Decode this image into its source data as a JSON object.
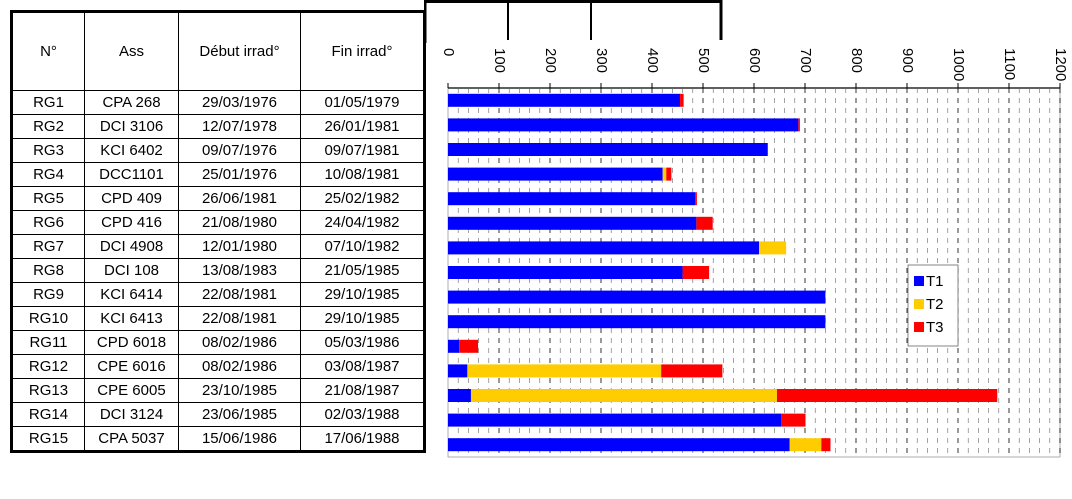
{
  "table": {
    "headers": [
      "N°",
      "Ass",
      "Début irrad°",
      "Fin irrad°"
    ],
    "rows": [
      [
        "RG1",
        "CPA 268",
        "29/03/1976",
        "01/05/1979"
      ],
      [
        "RG2",
        "DCI 3106",
        "12/07/1978",
        "26/01/1981"
      ],
      [
        "RG3",
        "KCI 6402",
        "09/07/1976",
        "09/07/1981"
      ],
      [
        "RG4",
        "DCC1101",
        "25/01/1976",
        "10/08/1981"
      ],
      [
        "RG5",
        "CPD 409",
        "26/06/1981",
        "25/02/1982"
      ],
      [
        "RG6",
        "CPD 416",
        "21/08/1980",
        "24/04/1982"
      ],
      [
        "RG7",
        "DCI 4908",
        "12/01/1980",
        "07/10/1982"
      ],
      [
        "RG8",
        "DCI 108",
        "13/08/1983",
        "21/05/1985"
      ],
      [
        "RG9",
        "KCI 6414",
        "22/08/1981",
        "29/10/1985"
      ],
      [
        "RG10",
        "KCI 6413",
        "22/08/1981",
        "29/10/1985"
      ],
      [
        "RG11",
        "CPD 6018",
        "08/02/1986",
        "05/03/1986"
      ],
      [
        "RG12",
        "CPE 6016",
        "08/02/1986",
        "03/08/1987"
      ],
      [
        "RG13",
        "CPE 6005",
        "23/10/1985",
        "21/08/1987"
      ],
      [
        "RG14",
        "DCI 3124",
        "23/06/1985",
        "02/03/1988"
      ],
      [
        "RG15",
        "CPA 5037",
        "15/06/1986",
        "17/06/1988"
      ]
    ]
  },
  "chart_data": {
    "type": "bar",
    "orientation": "horizontal-stacked",
    "categories": [
      "RG1",
      "RG2",
      "RG3",
      "RG4",
      "RG5",
      "RG6",
      "RG7",
      "RG8",
      "RG9",
      "RG10",
      "RG11",
      "RG12",
      "RG13",
      "RG14",
      "RG15"
    ],
    "series": [
      {
        "name": "T1",
        "color": "#0000ff",
        "values": [
          455,
          687,
          627,
          421,
          485,
          487,
          610,
          460,
          740,
          740,
          22,
          38,
          45,
          653,
          670
        ]
      },
      {
        "name": "T2",
        "color": "#ffcc00",
        "values": [
          0,
          0,
          0,
          7,
          0,
          0,
          53,
          0,
          0,
          0,
          0,
          380,
          600,
          0,
          62
        ]
      },
      {
        "name": "T3",
        "color": "#ff0000",
        "values": [
          7,
          3,
          0,
          10,
          3,
          32,
          0,
          52,
          0,
          0,
          37,
          120,
          432,
          48,
          18
        ]
      }
    ],
    "xticks": [
      0,
      100,
      200,
      300,
      400,
      500,
      600,
      700,
      800,
      900,
      1000,
      1100,
      1200
    ],
    "xtick_labels": [
      "0",
      "100",
      "200",
      "300",
      "400",
      "500",
      "600",
      "700",
      "800",
      "900",
      "1000",
      "1100",
      "1200"
    ],
    "xlim": [
      0,
      1200
    ],
    "xlabel": "",
    "ylabel": "",
    "title": "",
    "grid": true,
    "legend_position": "right"
  }
}
